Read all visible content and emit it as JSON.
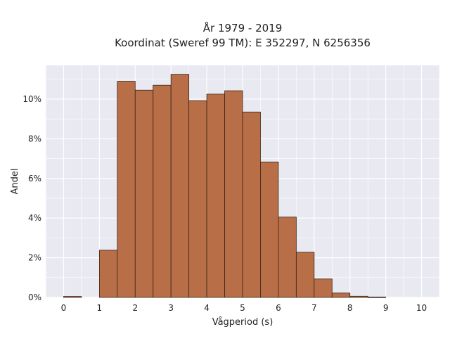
{
  "chart_data": {
    "type": "bar",
    "title_line1": "År 1979 - 2019",
    "title_line2": "Koordinat (Sweref 99 TM): E 352297, N 6256356",
    "xlabel": "Vågperiod (s)",
    "ylabel": "Andel",
    "x_tick_labels": [
      "0",
      "1",
      "2",
      "3",
      "4",
      "5",
      "6",
      "7",
      "8",
      "9",
      "10"
    ],
    "y_tick_labels": [
      "0%",
      "2%",
      "4%",
      "6%",
      "8%",
      "10%"
    ],
    "xlim": [
      -0.5,
      10.5
    ],
    "ylim": [
      0,
      11.7
    ],
    "bin_width": 0.5,
    "bins": [
      {
        "start": 0.0,
        "value": 0.05
      },
      {
        "start": 0.5,
        "value": 0.0
      },
      {
        "start": 1.0,
        "value": 2.38
      },
      {
        "start": 1.5,
        "value": 10.9
      },
      {
        "start": 2.0,
        "value": 10.45
      },
      {
        "start": 2.5,
        "value": 10.7
      },
      {
        "start": 3.0,
        "value": 11.25
      },
      {
        "start": 3.5,
        "value": 9.92
      },
      {
        "start": 4.0,
        "value": 10.25
      },
      {
        "start": 4.5,
        "value": 10.42
      },
      {
        "start": 5.0,
        "value": 9.35
      },
      {
        "start": 5.5,
        "value": 6.83
      },
      {
        "start": 6.0,
        "value": 4.05
      },
      {
        "start": 6.5,
        "value": 2.28
      },
      {
        "start": 7.0,
        "value": 0.93
      },
      {
        "start": 7.5,
        "value": 0.22
      },
      {
        "start": 8.0,
        "value": 0.06
      },
      {
        "start": 8.5,
        "value": 0.02
      }
    ],
    "grid": true,
    "colors": {
      "bar_fill": "#b86f48",
      "bar_edge": "#3a2418",
      "plot_bg": "#e9e9f1",
      "grid": "#ffffff"
    }
  }
}
